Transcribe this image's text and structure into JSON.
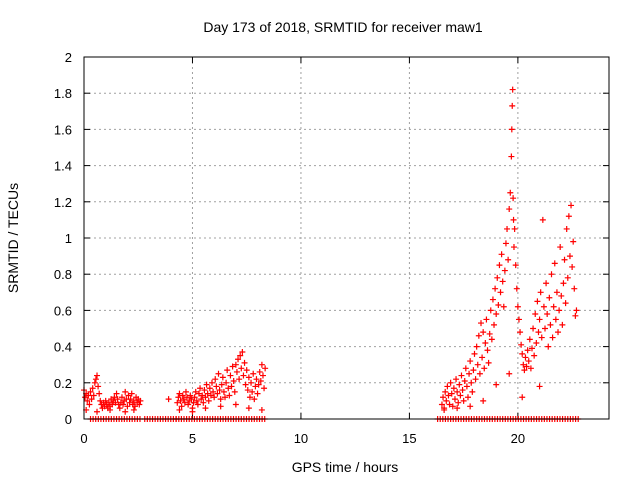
{
  "chart_data": {
    "type": "scatter",
    "title": "Day 173 of 2018, SRMTID for receiver maw1",
    "xlabel": "GPS time / hours",
    "ylabel": "SRMTID / TECUs",
    "xlim": [
      0,
      24.2
    ],
    "ylim": [
      0,
      2
    ],
    "xticks": [
      0,
      5,
      10,
      15,
      20
    ],
    "yticks": [
      0,
      0.2,
      0.4,
      0.6,
      0.8,
      1,
      1.2,
      1.4,
      1.6,
      1.8,
      2
    ],
    "grid": true,
    "marker": "+",
    "color": "#ff0000",
    "series": [
      {
        "name": "maw1",
        "points": [
          [
            0.0,
            0.16
          ],
          [
            0.05,
            0.12
          ],
          [
            0.1,
            0.14
          ],
          [
            0.15,
            0.1
          ],
          [
            0.2,
            0.13
          ],
          [
            0.25,
            0.08
          ],
          [
            0.3,
            0.15
          ],
          [
            0.35,
            0.11
          ],
          [
            0.4,
            0.17
          ],
          [
            0.45,
            0.13
          ],
          [
            0.5,
            0.2
          ],
          [
            0.55,
            0.22
          ],
          [
            0.6,
            0.24
          ],
          [
            0.65,
            0.18
          ],
          [
            0.7,
            0.14
          ],
          [
            0.75,
            0.1
          ],
          [
            0.8,
            0.08
          ],
          [
            0.85,
            0.06
          ],
          [
            0.9,
            0.09
          ],
          [
            0.95,
            0.07
          ],
          [
            1.0,
            0.1
          ],
          [
            1.05,
            0.08
          ],
          [
            1.1,
            0.06
          ],
          [
            1.15,
            0.09
          ],
          [
            1.2,
            0.07
          ],
          [
            1.25,
            0.11
          ],
          [
            1.3,
            0.08
          ],
          [
            1.35,
            0.1
          ],
          [
            1.4,
            0.12
          ],
          [
            1.45,
            0.09
          ],
          [
            1.5,
            0.14
          ],
          [
            1.55,
            0.11
          ],
          [
            1.6,
            0.08
          ],
          [
            1.65,
            0.06
          ],
          [
            1.7,
            0.09
          ],
          [
            1.75,
            0.12
          ],
          [
            1.8,
            0.08
          ],
          [
            1.85,
            0.1
          ],
          [
            1.9,
            0.15
          ],
          [
            1.95,
            0.11
          ],
          [
            2.0,
            0.07
          ],
          [
            2.05,
            0.13
          ],
          [
            2.1,
            0.09
          ],
          [
            2.15,
            0.11
          ],
          [
            2.2,
            0.14
          ],
          [
            2.25,
            0.08
          ],
          [
            2.3,
            0.1
          ],
          [
            2.35,
            0.07
          ],
          [
            2.4,
            0.12
          ],
          [
            2.45,
            0.09
          ],
          [
            2.5,
            0.11
          ],
          [
            2.55,
            0.08
          ],
          [
            2.6,
            0.1
          ],
          [
            0.1,
            0.05
          ],
          [
            0.6,
            0.04
          ],
          [
            1.2,
            0.05
          ],
          [
            1.9,
            0.04
          ],
          [
            2.3,
            0.05
          ],
          [
            3.9,
            0.11
          ],
          [
            4.3,
            0.09
          ],
          [
            4.35,
            0.12
          ],
          [
            4.4,
            0.14
          ],
          [
            4.45,
            0.1
          ],
          [
            4.5,
            0.07
          ],
          [
            4.55,
            0.13
          ],
          [
            4.6,
            0.11
          ],
          [
            4.65,
            0.09
          ],
          [
            4.7,
            0.15
          ],
          [
            4.75,
            0.12
          ],
          [
            4.8,
            0.08
          ],
          [
            4.85,
            0.1
          ],
          [
            4.9,
            0.13
          ],
          [
            4.95,
            0.11
          ],
          [
            5.0,
            0.06
          ],
          [
            5.05,
            0.09
          ],
          [
            5.1,
            0.12
          ],
          [
            5.15,
            0.15
          ],
          [
            5.2,
            0.1
          ],
          [
            5.25,
            0.08
          ],
          [
            5.3,
            0.14
          ],
          [
            5.35,
            0.17
          ],
          [
            5.4,
            0.11
          ],
          [
            5.45,
            0.13
          ],
          [
            5.5,
            0.09
          ],
          [
            5.55,
            0.16
          ],
          [
            5.6,
            0.12
          ],
          [
            5.65,
            0.19
          ],
          [
            5.7,
            0.14
          ],
          [
            5.75,
            0.1
          ],
          [
            5.8,
            0.17
          ],
          [
            5.85,
            0.13
          ],
          [
            5.9,
            0.2
          ],
          [
            5.95,
            0.15
          ],
          [
            6.0,
            0.12
          ],
          [
            6.05,
            0.22
          ],
          [
            6.1,
            0.18
          ],
          [
            6.15,
            0.14
          ],
          [
            6.2,
            0.25
          ],
          [
            6.25,
            0.16
          ],
          [
            6.3,
            0.11
          ],
          [
            6.35,
            0.19
          ],
          [
            6.4,
            0.23
          ],
          [
            6.45,
            0.15
          ],
          [
            6.5,
            0.12
          ],
          [
            6.55,
            0.2
          ],
          [
            6.6,
            0.27
          ],
          [
            6.65,
            0.17
          ],
          [
            6.7,
            0.13
          ],
          [
            6.75,
            0.24
          ],
          [
            6.8,
            0.18
          ],
          [
            6.85,
            0.29
          ],
          [
            6.9,
            0.21
          ],
          [
            6.95,
            0.15
          ],
          [
            7.0,
            0.3
          ],
          [
            7.05,
            0.26
          ],
          [
            7.1,
            0.33
          ],
          [
            7.15,
            0.22
          ],
          [
            7.2,
            0.35
          ],
          [
            7.25,
            0.28
          ],
          [
            7.3,
            0.37
          ],
          [
            7.35,
            0.24
          ],
          [
            7.4,
            0.31
          ],
          [
            7.45,
            0.19
          ],
          [
            7.5,
            0.27
          ],
          [
            7.55,
            0.16
          ],
          [
            7.6,
            0.23
          ],
          [
            7.65,
            0.12
          ],
          [
            7.7,
            0.2
          ],
          [
            7.75,
            0.15
          ],
          [
            7.8,
            0.25
          ],
          [
            7.85,
            0.11
          ],
          [
            7.9,
            0.18
          ],
          [
            7.95,
            0.22
          ],
          [
            8.0,
            0.14
          ],
          [
            8.05,
            0.19
          ],
          [
            8.1,
            0.26
          ],
          [
            8.15,
            0.21
          ],
          [
            8.2,
            0.3
          ],
          [
            8.25,
            0.24
          ],
          [
            8.3,
            0.17
          ],
          [
            8.35,
            0.28
          ],
          [
            4.4,
            0.05
          ],
          [
            5.0,
            0.04
          ],
          [
            5.6,
            0.06
          ],
          [
            6.3,
            0.07
          ],
          [
            7.0,
            0.08
          ],
          [
            7.6,
            0.06
          ],
          [
            8.2,
            0.05
          ],
          [
            16.5,
            0.08
          ],
          [
            16.55,
            0.12
          ],
          [
            16.6,
            0.06
          ],
          [
            16.65,
            0.15
          ],
          [
            16.7,
            0.1
          ],
          [
            16.75,
            0.18
          ],
          [
            16.8,
            0.13
          ],
          [
            16.85,
            0.08
          ],
          [
            16.9,
            0.2
          ],
          [
            16.95,
            0.14
          ],
          [
            17.0,
            0.07
          ],
          [
            17.05,
            0.17
          ],
          [
            17.1,
            0.11
          ],
          [
            17.15,
            0.22
          ],
          [
            17.2,
            0.15
          ],
          [
            17.25,
            0.09
          ],
          [
            17.3,
            0.19
          ],
          [
            17.35,
            0.13
          ],
          [
            17.4,
            0.24
          ],
          [
            17.45,
            0.16
          ],
          [
            17.5,
            0.1
          ],
          [
            17.55,
            0.21
          ],
          [
            17.6,
            0.28
          ],
          [
            17.65,
            0.18
          ],
          [
            17.7,
            0.12
          ],
          [
            17.75,
            0.25
          ],
          [
            17.8,
            0.32
          ],
          [
            17.85,
            0.2
          ],
          [
            17.9,
            0.15
          ],
          [
            17.95,
            0.27
          ],
          [
            18.0,
            0.36
          ],
          [
            18.05,
            0.22
          ],
          [
            18.1,
            0.4
          ],
          [
            18.15,
            0.3
          ],
          [
            18.2,
            0.46
          ],
          [
            18.25,
            0.25
          ],
          [
            18.3,
            0.53
          ],
          [
            18.35,
            0.34
          ],
          [
            18.4,
            0.48
          ],
          [
            18.45,
            0.28
          ],
          [
            18.5,
            0.42
          ],
          [
            18.55,
            0.55
          ],
          [
            18.6,
            0.38
          ],
          [
            18.65,
            0.31
          ],
          [
            18.7,
            0.47
          ],
          [
            18.75,
            0.6
          ],
          [
            18.8,
            0.44
          ],
          [
            18.85,
            0.66
          ],
          [
            18.9,
            0.52
          ],
          [
            18.95,
            0.72
          ],
          [
            19.0,
            0.58
          ],
          [
            19.05,
            0.78
          ],
          [
            19.1,
            0.63
          ],
          [
            19.15,
            0.85
          ],
          [
            19.2,
            0.7
          ],
          [
            19.25,
            0.91
          ],
          [
            19.3,
            0.76
          ],
          [
            19.35,
            0.62
          ],
          [
            19.4,
            0.82
          ],
          [
            19.45,
            0.97
          ],
          [
            19.5,
            1.05
          ],
          [
            19.55,
            0.88
          ],
          [
            19.6,
            1.16
          ],
          [
            19.65,
            1.25
          ],
          [
            19.7,
            1.45
          ],
          [
            19.72,
            1.6
          ],
          [
            19.74,
            1.73
          ],
          [
            19.76,
            1.82
          ],
          [
            19.78,
            1.22
          ],
          [
            19.8,
            1.1
          ],
          [
            19.82,
            0.95
          ],
          [
            19.85,
            1.05
          ],
          [
            19.9,
            0.85
          ],
          [
            19.95,
            0.72
          ],
          [
            20.0,
            0.62
          ],
          [
            20.05,
            0.55
          ],
          [
            20.1,
            0.48
          ],
          [
            20.15,
            0.41
          ],
          [
            20.2,
            0.36
          ],
          [
            20.25,
            0.3
          ],
          [
            20.3,
            0.27
          ],
          [
            20.35,
            0.34
          ],
          [
            20.4,
            0.29
          ],
          [
            20.45,
            0.38
          ],
          [
            20.5,
            0.32
          ],
          [
            20.55,
            0.44
          ],
          [
            20.6,
            0.28
          ],
          [
            20.65,
            0.39
          ],
          [
            20.7,
            0.5
          ],
          [
            20.75,
            0.35
          ],
          [
            20.8,
            0.58
          ],
          [
            20.85,
            0.42
          ],
          [
            20.9,
            0.65
          ],
          [
            20.95,
            0.48
          ],
          [
            21.0,
            0.55
          ],
          [
            21.05,
            0.7
          ],
          [
            21.1,
            0.45
          ],
          [
            21.15,
            1.1
          ],
          [
            21.2,
            0.62
          ],
          [
            21.25,
            0.5
          ],
          [
            21.3,
            0.75
          ],
          [
            21.35,
            0.58
          ],
          [
            21.4,
            0.4
          ],
          [
            21.45,
            0.67
          ],
          [
            21.5,
            0.52
          ],
          [
            21.55,
            0.8
          ],
          [
            21.6,
            0.45
          ],
          [
            21.65,
            0.62
          ],
          [
            21.7,
            0.86
          ],
          [
            21.75,
            0.55
          ],
          [
            21.8,
            0.7
          ],
          [
            21.85,
            0.48
          ],
          [
            21.9,
            0.6
          ],
          [
            21.95,
            0.95
          ],
          [
            22.0,
            0.68
          ],
          [
            22.05,
            0.52
          ],
          [
            22.1,
            0.75
          ],
          [
            22.15,
            0.88
          ],
          [
            22.2,
            0.64
          ],
          [
            22.25,
            1.05
          ],
          [
            22.3,
            0.78
          ],
          [
            22.35,
            1.12
          ],
          [
            22.4,
            0.9
          ],
          [
            22.45,
            1.18
          ],
          [
            22.5,
            0.84
          ],
          [
            22.55,
            0.98
          ],
          [
            22.6,
            0.72
          ],
          [
            22.65,
            0.57
          ],
          [
            22.7,
            0.6
          ],
          [
            16.6,
            0.05
          ],
          [
            17.2,
            0.06
          ],
          [
            17.8,
            0.07
          ],
          [
            18.4,
            0.1
          ],
          [
            19.0,
            0.19
          ],
          [
            19.6,
            0.25
          ],
          [
            20.2,
            0.12
          ],
          [
            21.0,
            0.18
          ]
        ]
      }
    ],
    "zero_floor": [
      [
        0.3,
        2.6
      ],
      [
        2.8,
        4.25
      ],
      [
        4.25,
        8.4
      ],
      [
        16.3,
        22.8
      ]
    ]
  }
}
